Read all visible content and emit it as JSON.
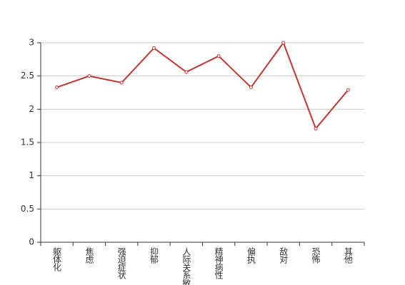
{
  "chart_data": {
    "type": "line",
    "categories": [
      "躯体化",
      "焦虑",
      "强迫症状",
      "抑郁",
      "人际关系敏感",
      "精神病性",
      "偏执",
      "敌对",
      "恐怖",
      "其他"
    ],
    "values": [
      2.33,
      2.5,
      2.4,
      2.92,
      2.56,
      2.8,
      2.33,
      3.0,
      1.71,
      2.29
    ],
    "color": "#c23531",
    "ylim": [
      0,
      3
    ],
    "yticks": [
      0,
      0.5,
      1,
      1.5,
      2,
      2.5,
      3
    ],
    "grid": true
  }
}
